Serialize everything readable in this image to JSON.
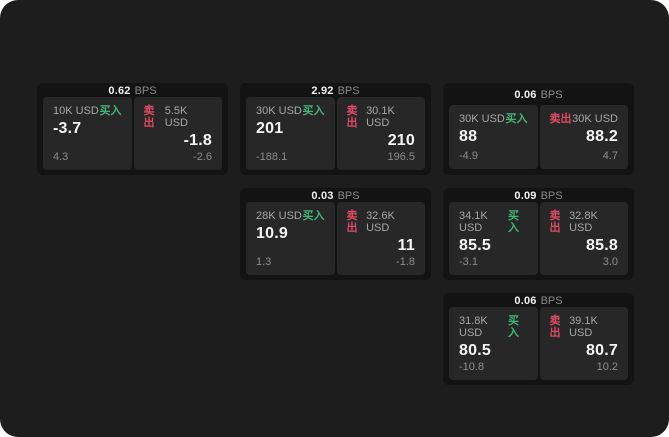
{
  "labels": {
    "buy": "买入",
    "sell": "卖出",
    "bps": "BPS"
  },
  "colors": {
    "page_bg": "#1d1d1d",
    "card_bg": "#131313",
    "panel_bg": "#272727",
    "buy_green": "#40b577",
    "sell_red": "#e04a62"
  },
  "cards": [
    {
      "bps_value": "0.62",
      "grid": {
        "row": 1,
        "col": 1
      },
      "buy": {
        "size": "10K USD",
        "price": "-3.7",
        "sub": "4.3"
      },
      "sell": {
        "size": "5.5K USD",
        "price": "-1.8",
        "sub": "-2.6"
      }
    },
    {
      "bps_value": "2.92",
      "grid": {
        "row": 1,
        "col": 2
      },
      "buy": {
        "size": "30K USD",
        "price": "201",
        "sub": "-188.1"
      },
      "sell": {
        "size": "30.1K USD",
        "price": "210",
        "sub": "196.5"
      }
    },
    {
      "bps_value": "0.06",
      "grid": {
        "row": 1,
        "col": 3
      },
      "buy": {
        "size": "30K USD",
        "price": "88",
        "sub": "-4.9"
      },
      "sell": {
        "size": "30K USD",
        "price": "88.2",
        "sub": "4.7"
      }
    },
    {
      "bps_value": "0.03",
      "grid": {
        "row": 2,
        "col": 2
      },
      "buy": {
        "size": "28K USD",
        "price": "10.9",
        "sub": "1.3"
      },
      "sell": {
        "size": "32.6K USD",
        "price": "11",
        "sub": "-1.8"
      }
    },
    {
      "bps_value": "0.09",
      "grid": {
        "row": 2,
        "col": 3
      },
      "buy": {
        "size": "34.1K USD",
        "price": "85.5",
        "sub": "-3.1"
      },
      "sell": {
        "size": "32.8K USD",
        "price": "85.8",
        "sub": "3.0"
      }
    },
    {
      "bps_value": "0.06",
      "grid": {
        "row": 3,
        "col": 3
      },
      "buy": {
        "size": "31.8K USD",
        "price": "80.5",
        "sub": "-10.8"
      },
      "sell": {
        "size": "39.1K USD",
        "price": "80.7",
        "sub": "10.2"
      }
    }
  ]
}
